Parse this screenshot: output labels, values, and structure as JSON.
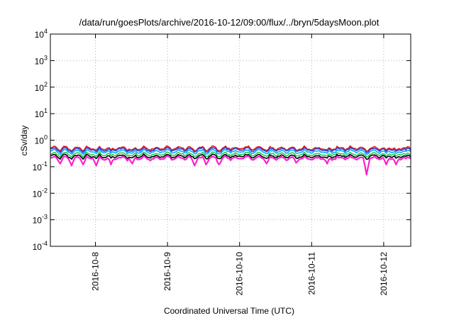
{
  "chart_data": {
    "type": "line",
    "title": "/data/run/goesPlots/archive/2016-10-12/09:00/flux/../bryn/5daysMoon.plot",
    "xlabel": "Coordinated Universal Time (UTC)",
    "ylabel": "cSv/day",
    "y_scale": "log",
    "ylim": [
      0.0001,
      10000
    ],
    "xlim": [
      "2016-10-07T09:00",
      "2016-10-12T09:00"
    ],
    "y_ticks": [
      {
        "base": "10",
        "exp": "-4",
        "value": 0.0001
      },
      {
        "base": "10",
        "exp": "-3",
        "value": 0.001
      },
      {
        "base": "10",
        "exp": "-2",
        "value": 0.01
      },
      {
        "base": "10",
        "exp": "-1",
        "value": 0.1
      },
      {
        "base": "10",
        "exp": "0",
        "value": 1
      },
      {
        "base": "10",
        "exp": "1",
        "value": 10
      },
      {
        "base": "10",
        "exp": "2",
        "value": 100
      },
      {
        "base": "10",
        "exp": "3",
        "value": 1000
      },
      {
        "base": "10",
        "exp": "4",
        "value": 10000
      }
    ],
    "x_ticks": [
      {
        "label": "2016-10-8",
        "value": "2016-10-08T00:00"
      },
      {
        "label": "2016-10-9",
        "value": "2016-10-09T00:00"
      },
      {
        "label": "2016-10-10",
        "value": "2016-10-10T00:00"
      },
      {
        "label": "2016-10-11",
        "value": "2016-10-11T00:00"
      },
      {
        "label": "2016-10-12",
        "value": "2016-10-12T00:00"
      }
    ],
    "grid": true,
    "legend": "none",
    "series": [
      {
        "color": "#e41a1c",
        "mean": 0.5
      },
      {
        "color": "#2a3fd6",
        "mean": 0.45
      },
      {
        "color": "#00aaff",
        "mean": 0.38
      },
      {
        "color": "#22cc55",
        "mean": 0.3
      },
      {
        "color": "#000000",
        "mean": 0.25
      },
      {
        "color": "#ff1fd0",
        "mean": 0.21
      }
    ],
    "dips": [
      {
        "x": "2016-10-07T12:00",
        "y": 0.13
      },
      {
        "x": "2016-10-07T16:00",
        "y": 0.11
      },
      {
        "x": "2016-10-07T20:00",
        "y": 0.12
      },
      {
        "x": "2016-10-08T00:00",
        "y": 0.11
      },
      {
        "x": "2016-10-08T05:00",
        "y": 0.12
      },
      {
        "x": "2016-10-08T12:00",
        "y": 0.13
      },
      {
        "x": "2016-10-09T09:00",
        "y": 0.11
      },
      {
        "x": "2016-10-09T13:00",
        "y": 0.12
      },
      {
        "x": "2016-10-09T17:00",
        "y": 0.12
      },
      {
        "x": "2016-10-10T09:00",
        "y": 0.13
      },
      {
        "x": "2016-10-10T19:00",
        "y": 0.14
      },
      {
        "x": "2016-10-11T05:00",
        "y": 0.13
      },
      {
        "x": "2016-10-11T18:00",
        "y": 0.05
      },
      {
        "x": "2016-10-12T01:00",
        "y": 0.12
      },
      {
        "x": "2016-10-12T04:00",
        "y": 0.12
      }
    ]
  }
}
